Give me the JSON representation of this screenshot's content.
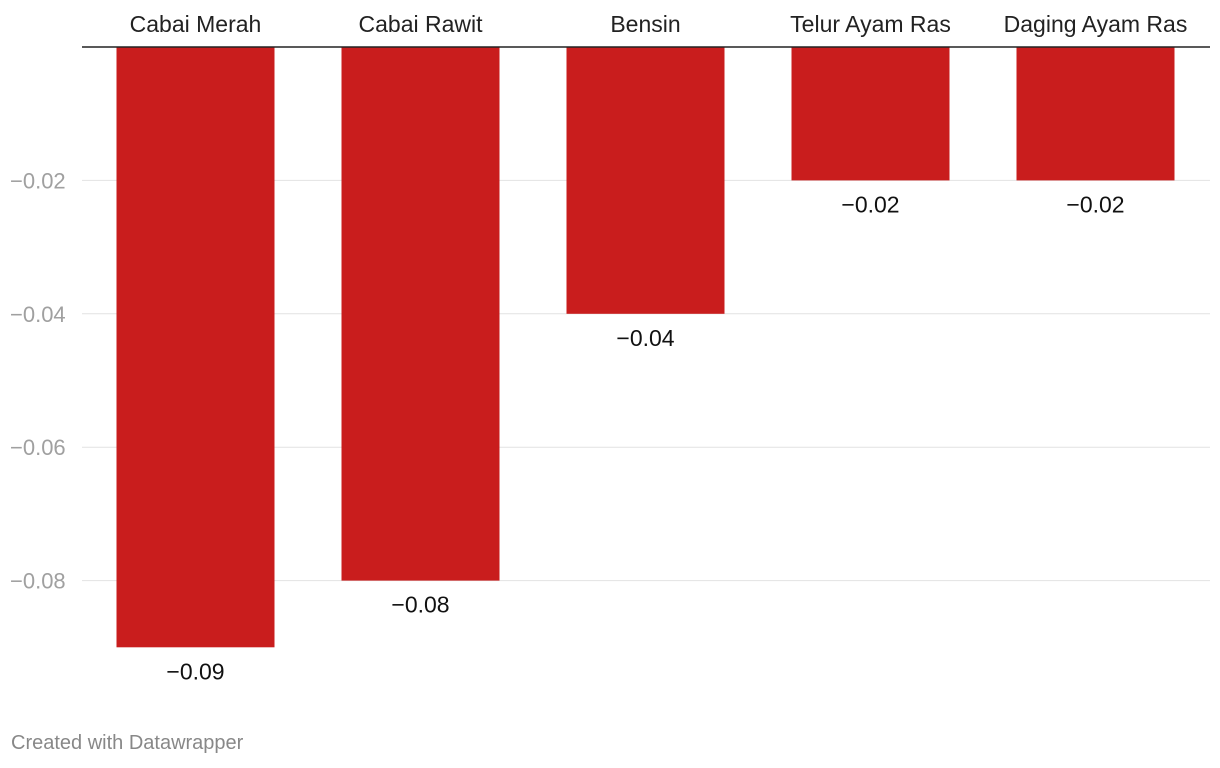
{
  "chart_data": {
    "type": "bar",
    "orientation": "vertical",
    "categories": [
      "Cabai Merah",
      "Cabai Rawit",
      "Bensin",
      "Telur Ayam Ras",
      "Daging Ayam Ras"
    ],
    "values": [
      -0.09,
      -0.08,
      -0.04,
      -0.02,
      -0.02
    ],
    "value_labels": [
      "−0.09",
      "−0.08",
      "−0.04",
      "−0.02",
      "−0.02"
    ],
    "y_ticks": [
      -0.02,
      -0.04,
      -0.06,
      -0.08
    ],
    "y_tick_labels": [
      "−0.02",
      "−0.04",
      "−0.06",
      "−0.08"
    ],
    "ylim": [
      -0.09,
      0
    ],
    "grid": true,
    "category_labels_position": "top",
    "bar_color": "#c91d1d"
  },
  "footer": {
    "credit": "Created with Datawrapper"
  }
}
